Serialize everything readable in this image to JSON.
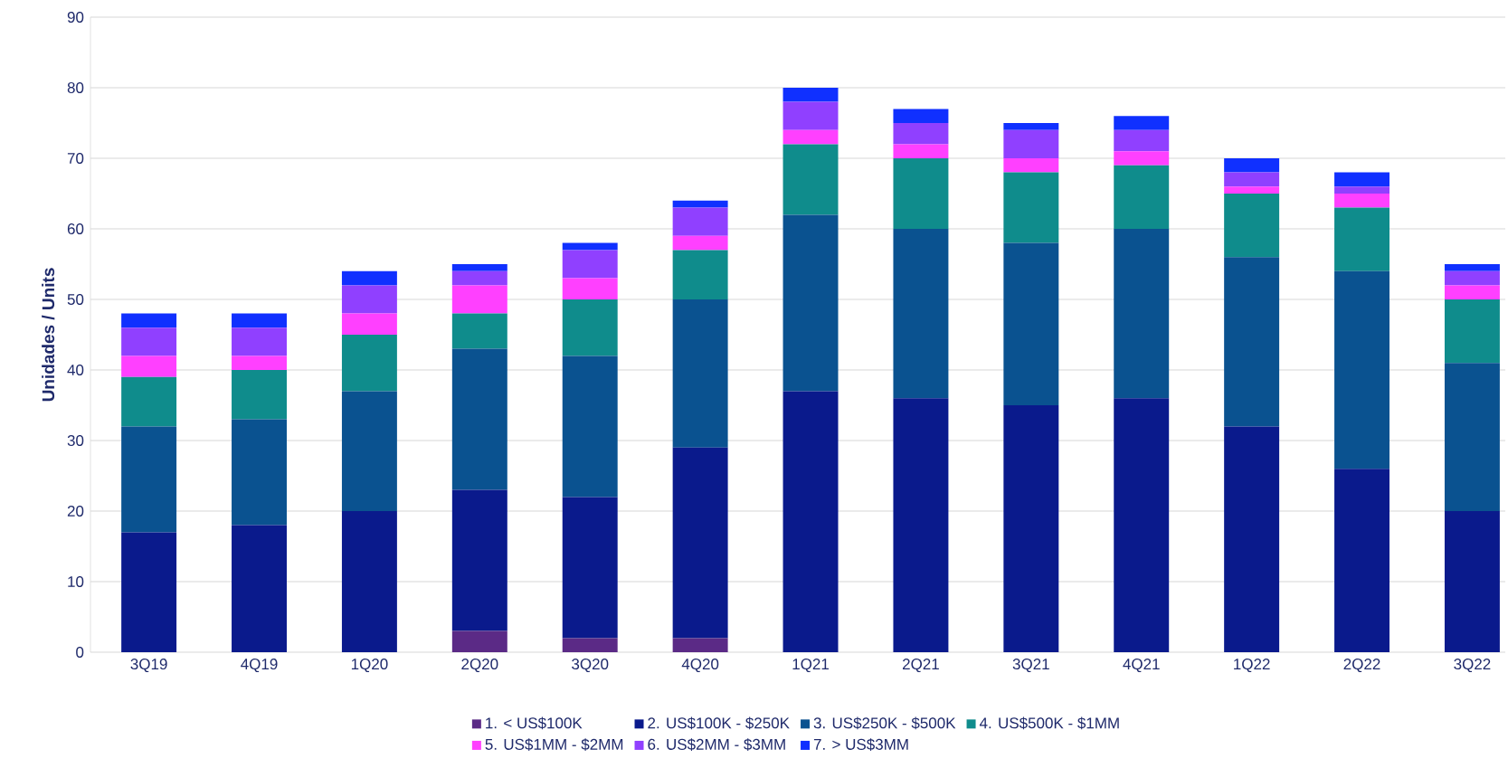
{
  "chart_data": {
    "type": "bar",
    "stacked": true,
    "ylabel": "Unidades / Units",
    "categories": [
      "3Q19",
      "4Q19",
      "1Q20",
      "2Q20",
      "3Q20",
      "4Q20",
      "1Q21",
      "2Q21",
      "3Q21",
      "4Q21",
      "1Q22",
      "2Q22",
      "3Q22"
    ],
    "series": [
      {
        "name": "1. < US$100K",
        "color": "#5b2a86",
        "values": [
          0,
          0,
          0,
          3,
          2,
          2,
          0,
          0,
          0,
          0,
          0,
          0,
          0
        ]
      },
      {
        "name": "2. US$100K - $250K",
        "color": "#0a1a8c",
        "values": [
          17,
          18,
          20,
          20,
          20,
          27,
          37,
          36,
          35,
          36,
          32,
          26,
          20
        ]
      },
      {
        "name": "3. US$250K - $500K",
        "color": "#0a5290",
        "values": [
          15,
          15,
          17,
          20,
          20,
          21,
          25,
          24,
          23,
          24,
          24,
          28,
          21
        ]
      },
      {
        "name": "4. US$500K - $1MM",
        "color": "#0f8c8c",
        "values": [
          7,
          7,
          8,
          5,
          8,
          7,
          10,
          10,
          10,
          9,
          9,
          9,
          9
        ]
      },
      {
        "name": "5. US$1MM - $2MM",
        "color": "#ff40ff",
        "values": [
          3,
          2,
          3,
          4,
          3,
          2,
          2,
          2,
          2,
          2,
          1,
          2,
          2
        ]
      },
      {
        "name": "6. US$2MM - $3MM",
        "color": "#9040ff",
        "values": [
          4,
          4,
          4,
          2,
          4,
          4,
          4,
          3,
          4,
          3,
          2,
          1,
          2
        ]
      },
      {
        "name": "7. > US$3MM",
        "color": "#1030ff",
        "values": [
          2,
          2,
          2,
          1,
          1,
          1,
          2,
          2,
          1,
          2,
          2,
          2,
          1
        ]
      }
    ],
    "ylim": [
      0,
      90
    ],
    "yticks": [
      0,
      10,
      20,
      30,
      40,
      50,
      60,
      70,
      80,
      90
    ],
    "grid": "y",
    "legend": "bottom"
  }
}
